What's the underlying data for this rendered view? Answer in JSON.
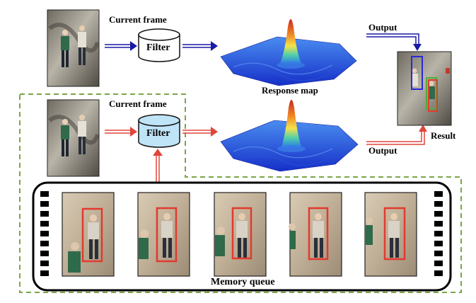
{
  "labels": {
    "current_frame_top": "Current frame",
    "current_frame_bottom": "Current frame",
    "filter_top": "Filter",
    "filter_bottom": "Filter",
    "output_top": "Output",
    "output_bottom": "Output",
    "response_map": "Response map",
    "result": "Result",
    "memory_queue": "Memory queue"
  },
  "colors": {
    "blue_arrow": "#1a1aa6",
    "red_arrow": "#e0453a",
    "dashed_green": "#7aa64a",
    "filter_top_fill": "#ffffff",
    "filter_bottom_fill": "#bfe3f7",
    "track_box_red": "#e23a2f",
    "result_blue_box": "#2a2ad8",
    "result_green_box": "#4caf3a"
  },
  "memory_queue": {
    "frame_count": 5
  }
}
